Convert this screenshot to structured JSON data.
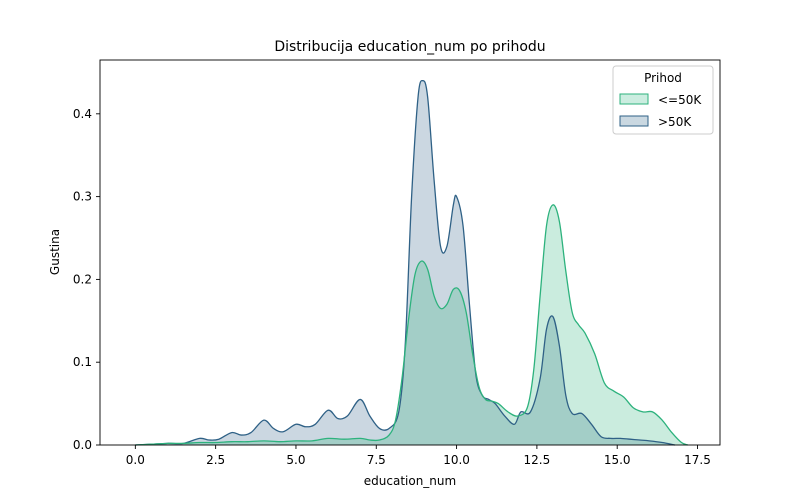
{
  "chart_data": {
    "type": "area",
    "title": "Distribucija education_num po prihodu",
    "xlabel": "education_num",
    "ylabel": "Gustina",
    "xlim": [
      -1.1,
      18.2
    ],
    "ylim": [
      0,
      0.465
    ],
    "xticks": [
      0.0,
      2.5,
      5.0,
      7.5,
      10.0,
      12.5,
      15.0,
      17.5
    ],
    "xtick_labels": [
      "0.0",
      "2.5",
      "5.0",
      "7.5",
      "10.0",
      "12.5",
      "15.0",
      "17.5"
    ],
    "yticks": [
      0.0,
      0.1,
      0.2,
      0.3,
      0.4
    ],
    "ytick_labels": [
      "0.0",
      "0.1",
      "0.2",
      "0.3",
      "0.4"
    ],
    "grid": false,
    "legend": {
      "title": "Prihod",
      "placement": "top-right"
    },
    "series": [
      {
        "name": "<=50K",
        "color": "#2db27d",
        "fill": "#cbede0",
        "points": [
          [
            0.0,
            0.0
          ],
          [
            0.5,
            0.001
          ],
          [
            1.0,
            0.002
          ],
          [
            1.5,
            0.002
          ],
          [
            2.0,
            0.003
          ],
          [
            2.5,
            0.003
          ],
          [
            3.0,
            0.004
          ],
          [
            3.5,
            0.004
          ],
          [
            4.0,
            0.005
          ],
          [
            4.5,
            0.004
          ],
          [
            5.0,
            0.005
          ],
          [
            5.5,
            0.005
          ],
          [
            6.0,
            0.008
          ],
          [
            6.5,
            0.007
          ],
          [
            7.0,
            0.008
          ],
          [
            7.3,
            0.006
          ],
          [
            7.6,
            0.006
          ],
          [
            7.9,
            0.012
          ],
          [
            8.1,
            0.03
          ],
          [
            8.3,
            0.08
          ],
          [
            8.5,
            0.15
          ],
          [
            8.7,
            0.205
          ],
          [
            8.9,
            0.222
          ],
          [
            9.1,
            0.212
          ],
          [
            9.3,
            0.18
          ],
          [
            9.5,
            0.165
          ],
          [
            9.7,
            0.17
          ],
          [
            9.9,
            0.188
          ],
          [
            10.1,
            0.186
          ],
          [
            10.3,
            0.16
          ],
          [
            10.5,
            0.11
          ],
          [
            10.7,
            0.07
          ],
          [
            10.9,
            0.055
          ],
          [
            11.1,
            0.053
          ],
          [
            11.3,
            0.05
          ],
          [
            11.6,
            0.04
          ],
          [
            11.9,
            0.035
          ],
          [
            12.2,
            0.045
          ],
          [
            12.4,
            0.09
          ],
          [
            12.6,
            0.18
          ],
          [
            12.8,
            0.265
          ],
          [
            13.0,
            0.29
          ],
          [
            13.2,
            0.27
          ],
          [
            13.4,
            0.21
          ],
          [
            13.6,
            0.16
          ],
          [
            13.8,
            0.145
          ],
          [
            14.0,
            0.135
          ],
          [
            14.3,
            0.11
          ],
          [
            14.6,
            0.075
          ],
          [
            14.9,
            0.065
          ],
          [
            15.2,
            0.058
          ],
          [
            15.5,
            0.045
          ],
          [
            15.8,
            0.04
          ],
          [
            16.1,
            0.04
          ],
          [
            16.4,
            0.03
          ],
          [
            16.7,
            0.015
          ],
          [
            17.0,
            0.003
          ],
          [
            17.2,
            0.0
          ]
        ]
      },
      {
        "name": ">50K",
        "color": "#2f6186",
        "fill": "#cad8e1",
        "points": [
          [
            0.0,
            0.0
          ],
          [
            0.5,
            0.001
          ],
          [
            1.0,
            0.002
          ],
          [
            1.5,
            0.002
          ],
          [
            2.0,
            0.008
          ],
          [
            2.3,
            0.006
          ],
          [
            2.6,
            0.007
          ],
          [
            3.0,
            0.015
          ],
          [
            3.3,
            0.012
          ],
          [
            3.6,
            0.015
          ],
          [
            4.0,
            0.03
          ],
          [
            4.3,
            0.02
          ],
          [
            4.6,
            0.016
          ],
          [
            5.0,
            0.025
          ],
          [
            5.3,
            0.022
          ],
          [
            5.6,
            0.025
          ],
          [
            6.0,
            0.042
          ],
          [
            6.3,
            0.032
          ],
          [
            6.6,
            0.035
          ],
          [
            7.0,
            0.055
          ],
          [
            7.3,
            0.035
          ],
          [
            7.6,
            0.02
          ],
          [
            7.9,
            0.02
          ],
          [
            8.2,
            0.04
          ],
          [
            8.4,
            0.12
          ],
          [
            8.6,
            0.3
          ],
          [
            8.8,
            0.42
          ],
          [
            8.95,
            0.44
          ],
          [
            9.1,
            0.42
          ],
          [
            9.3,
            0.32
          ],
          [
            9.5,
            0.24
          ],
          [
            9.7,
            0.24
          ],
          [
            9.9,
            0.29
          ],
          [
            10.0,
            0.3
          ],
          [
            10.2,
            0.265
          ],
          [
            10.4,
            0.17
          ],
          [
            10.6,
            0.085
          ],
          [
            10.8,
            0.06
          ],
          [
            11.0,
            0.055
          ],
          [
            11.2,
            0.05
          ],
          [
            11.5,
            0.035
          ],
          [
            11.8,
            0.025
          ],
          [
            12.0,
            0.04
          ],
          [
            12.3,
            0.04
          ],
          [
            12.6,
            0.08
          ],
          [
            12.8,
            0.14
          ],
          [
            13.0,
            0.155
          ],
          [
            13.2,
            0.12
          ],
          [
            13.4,
            0.06
          ],
          [
            13.6,
            0.038
          ],
          [
            13.9,
            0.038
          ],
          [
            14.2,
            0.025
          ],
          [
            14.5,
            0.01
          ],
          [
            14.8,
            0.008
          ],
          [
            15.1,
            0.008
          ],
          [
            15.4,
            0.007
          ],
          [
            15.7,
            0.006
          ],
          [
            16.0,
            0.005
          ],
          [
            16.4,
            0.003
          ],
          [
            16.8,
            0.0
          ]
        ]
      }
    ]
  }
}
